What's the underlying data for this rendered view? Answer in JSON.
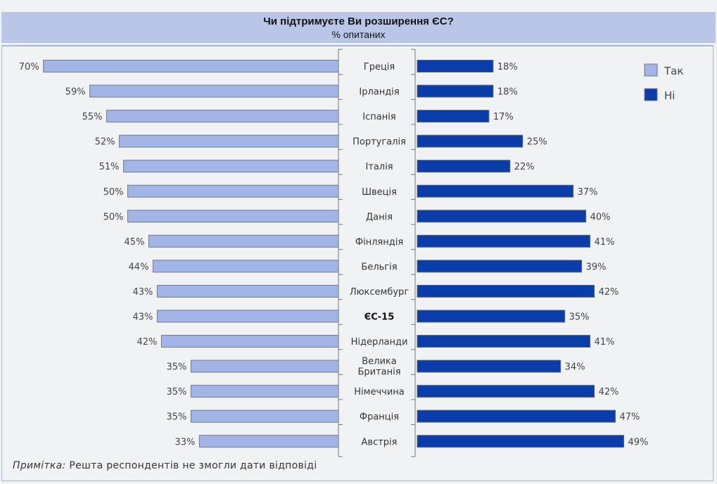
{
  "chart_data": {
    "type": "bar",
    "orientation": "horizontal-diverging",
    "title": "Чи підтримуєте Ви розширення ЄС?",
    "subtitle": "% опитаних",
    "categories": [
      "Греція",
      "Ірландія",
      "Іспанія",
      "Португалія",
      "Італія",
      "Швеція",
      "Данія",
      "Фінляндія",
      "Бельгія",
      "Люксембург",
      "ЄС-15",
      "Нідерланди",
      "Велика Британія",
      "Німеччина",
      "Франція",
      "Австрія"
    ],
    "bold_categories": [
      "ЄС-15"
    ],
    "series": [
      {
        "name": "Так",
        "color": "#a3b5e6",
        "side": "left",
        "values": [
          70,
          59,
          55,
          52,
          51,
          50,
          50,
          45,
          44,
          43,
          43,
          42,
          35,
          35,
          35,
          33
        ]
      },
      {
        "name": "Ні",
        "color": "#0a3caa",
        "side": "right",
        "values": [
          18,
          18,
          17,
          25,
          22,
          37,
          40,
          41,
          39,
          42,
          35,
          41,
          34,
          42,
          47,
          49
        ]
      }
    ],
    "value_suffix": "%",
    "legend": {
      "position": "top-right",
      "entries": [
        "Так",
        "Ні"
      ]
    },
    "grid": false,
    "note_label": "Примітка:",
    "note_text": "Решта респондентів не змогли дати відповіді"
  }
}
